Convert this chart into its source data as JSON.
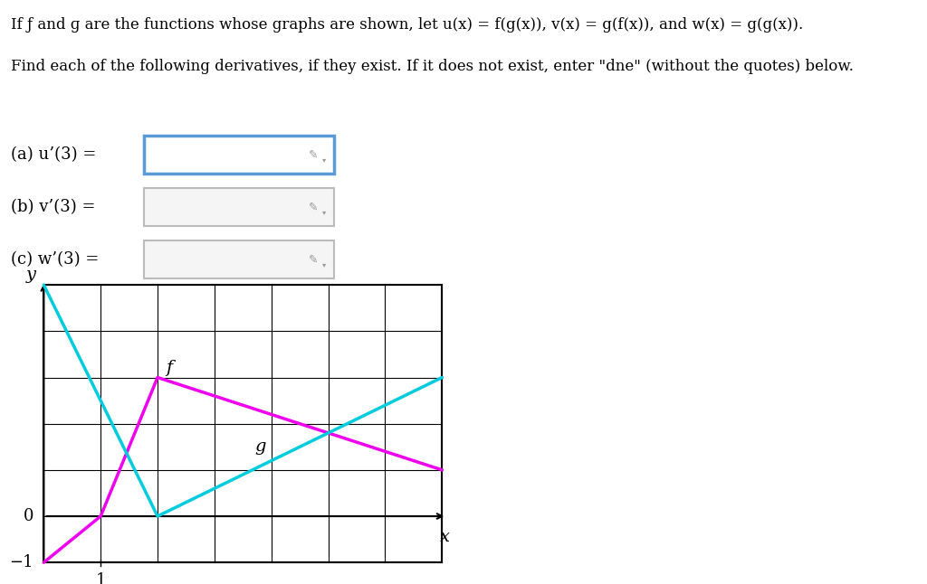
{
  "background_color": "#ffffff",
  "line1": "If ƒ and ɡ are the functions whose graphs are shown, let u(x) = f(g(x)), v(x) = g(f(x)), and w(x) = g(g(x)).",
  "line2": "Find each of the following derivatives, if they exist. If it does not exist, enter \"dne\" (without the quotes) below.",
  "label_a": "(a) u’(3) =",
  "label_b": "(b) v’(3) =",
  "label_c": "(c) w’(3) =",
  "graph_xlim": [
    0,
    7
  ],
  "graph_ylim": [
    -1,
    5
  ],
  "f_color": "#ee00ee",
  "f_label": "f",
  "f_points": [
    [
      0,
      -1
    ],
    [
      1,
      0
    ],
    [
      2,
      3
    ],
    [
      7,
      1
    ]
  ],
  "g_color": "#00ccdd",
  "g_label": "g",
  "g_points": [
    [
      0,
      5
    ],
    [
      2,
      0
    ],
    [
      7,
      3
    ]
  ],
  "box_a_edgecolor": "#5b9bd5",
  "box_a_facecolor": "#ffffff",
  "box_bc_edgecolor": "#bbbbbb",
  "box_bc_facecolor": "#f5f5f5",
  "header_fontsize": 12,
  "label_fontsize": 13,
  "graph_label_fontsize": 14,
  "tick_fontsize": 13,
  "line_width": 2.5,
  "grid_color": "#000000",
  "grid_lw": 0.8
}
